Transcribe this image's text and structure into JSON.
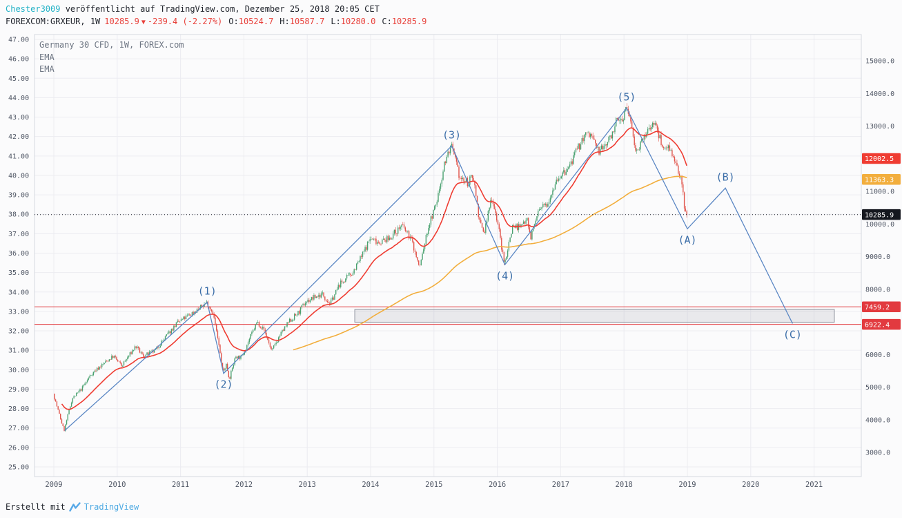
{
  "header": {
    "username": "Chester3009",
    "published_text": " veröffentlicht auf TradingView.com, Dezember 25, 2018 20:05 CET",
    "symbol": {
      "name": "FOREXCOM:GRXEUR, 1W",
      "price": "10285.9",
      "arrow": "▼",
      "change": "-239.4 (-2.27%)",
      "o_label": "O:",
      "o": "10524.7",
      "h_label": "H:",
      "h": "10587.7",
      "l_label": "L:",
      "l": "10280.0",
      "c_label": "C:",
      "c": "10285.9"
    }
  },
  "legend": {
    "title": "Germany 30 CFD, 1W, FOREX.com",
    "ema1": "EMA",
    "ema2": "EMA"
  },
  "footer": {
    "created_with": "Erstellt mit",
    "brand": "TradingView"
  },
  "colors": {
    "grid": "#ececf1",
    "border": "#d5d8df",
    "axis_text": "#4f5664",
    "candle_up": "#4aa170",
    "candle_down": "#e0534a",
    "ema_fast": "#ef3c32",
    "ema_slow": "#f2ae3d",
    "level": "#e23a3f",
    "current_badge": "#14171e",
    "wave_line": "#5b87c4",
    "wave_label": "#3a6da8",
    "zone_fill": "rgba(140,144,156,0.16)",
    "zone_border": "#8f939e",
    "dotted_line": "#20242c"
  },
  "chart_data": {
    "type": "candlestick",
    "title": "Germany 30 CFD, 1W, FOREX.com",
    "x_axis": {
      "years": [
        2009,
        2010,
        2011,
        2012,
        2013,
        2014,
        2015,
        2016,
        2017,
        2018,
        2019,
        2020,
        2021
      ]
    },
    "left_axis": {
      "ticks": [
        47,
        46,
        45,
        44,
        43,
        42,
        41,
        40,
        39,
        38,
        37,
        36,
        35,
        34,
        33,
        32,
        31,
        30,
        29,
        28,
        27,
        26,
        25
      ]
    },
    "right_axis": {
      "ticks": [
        15000,
        14000,
        13000,
        12000,
        11000,
        10000,
        9000,
        8000,
        7000,
        6000,
        5000,
        4000,
        3000
      ],
      "min": 2300,
      "max": 15650
    },
    "current_price": 10285.9,
    "levels": [
      7459.2,
      6922.4
    ],
    "zone": {
      "t_start": 2013.75,
      "t_end": 2021.32,
      "price_top": 7380,
      "price_bottom": 6990
    },
    "ema_fast": {
      "period": 30,
      "last": 12002.5
    },
    "ema_slow": {
      "period": 200,
      "last": 11363.3
    },
    "price_anchors": [
      [
        2009.0,
        4800
      ],
      [
        2009.06,
        4400
      ],
      [
        2009.17,
        3666
      ],
      [
        2009.3,
        4650
      ],
      [
        2009.45,
        4950
      ],
      [
        2009.6,
        5400
      ],
      [
        2009.78,
        5700
      ],
      [
        2009.95,
        5950
      ],
      [
        2010.08,
        5650
      ],
      [
        2010.3,
        6250
      ],
      [
        2010.42,
        5950
      ],
      [
        2010.6,
        6100
      ],
      [
        2010.8,
        6600
      ],
      [
        2010.95,
        6950
      ],
      [
        2011.1,
        7150
      ],
      [
        2011.3,
        7400
      ],
      [
        2011.42,
        7600
      ],
      [
        2011.52,
        7300
      ],
      [
        2011.6,
        6450
      ],
      [
        2011.68,
        5450
      ],
      [
        2011.73,
        5700
      ],
      [
        2011.78,
        5250
      ],
      [
        2011.88,
        5950
      ],
      [
        2011.97,
        5900
      ],
      [
        2012.08,
        6400
      ],
      [
        2012.22,
        7000
      ],
      [
        2012.33,
        6750
      ],
      [
        2012.45,
        6100
      ],
      [
        2012.58,
        6600
      ],
      [
        2012.72,
        7000
      ],
      [
        2012.88,
        7300
      ],
      [
        2012.98,
        7600
      ],
      [
        2013.12,
        7750
      ],
      [
        2013.25,
        7850
      ],
      [
        2013.37,
        7550
      ],
      [
        2013.52,
        8150
      ],
      [
        2013.72,
        8500
      ],
      [
        2013.88,
        9050
      ],
      [
        2014.0,
        9550
      ],
      [
        2014.15,
        9450
      ],
      [
        2014.3,
        9550
      ],
      [
        2014.5,
        9950
      ],
      [
        2014.65,
        9550
      ],
      [
        2014.78,
        8650
      ],
      [
        2014.92,
        9900
      ],
      [
        2015.05,
        10650
      ],
      [
        2015.18,
        11900
      ],
      [
        2015.28,
        12390
      ],
      [
        2015.42,
        11400
      ],
      [
        2015.55,
        11250
      ],
      [
        2015.63,
        11500
      ],
      [
        2015.73,
        10050
      ],
      [
        2015.8,
        9700
      ],
      [
        2015.92,
        10850
      ],
      [
        2016.02,
        10000
      ],
      [
        2016.12,
        8750
      ],
      [
        2016.25,
        9950
      ],
      [
        2016.38,
        9900
      ],
      [
        2016.48,
        10250
      ],
      [
        2016.53,
        9550
      ],
      [
        2016.65,
        10350
      ],
      [
        2016.8,
        10650
      ],
      [
        2016.95,
        11400
      ],
      [
        2017.1,
        11600
      ],
      [
        2017.22,
        12050
      ],
      [
        2017.38,
        12700
      ],
      [
        2017.48,
        12750
      ],
      [
        2017.62,
        12200
      ],
      [
        2017.78,
        12600
      ],
      [
        2017.88,
        13100
      ],
      [
        2017.98,
        13200
      ],
      [
        2018.04,
        13550
      ],
      [
        2018.12,
        13150
      ],
      [
        2018.18,
        12300
      ],
      [
        2018.28,
        12450
      ],
      [
        2018.4,
        12900
      ],
      [
        2018.48,
        13150
      ],
      [
        2018.57,
        12650
      ],
      [
        2018.65,
        12300
      ],
      [
        2018.72,
        12450
      ],
      [
        2018.8,
        11900
      ],
      [
        2018.87,
        11550
      ],
      [
        2018.92,
        11350
      ],
      [
        2018.96,
        10600
      ],
      [
        2018.99,
        10285.9
      ]
    ],
    "wave_path": [
      {
        "label": null,
        "t": 2009.17,
        "price": 3666,
        "pos": "below"
      },
      {
        "label": "(1)",
        "t": 2011.42,
        "price": 7600,
        "pos": "above"
      },
      {
        "label": "(2)",
        "t": 2011.68,
        "price": 5420,
        "pos": "below"
      },
      {
        "label": "(3)",
        "t": 2015.28,
        "price": 12390,
        "pos": "above"
      },
      {
        "label": "(4)",
        "t": 2016.12,
        "price": 8750,
        "pos": "below"
      },
      {
        "label": "(5)",
        "t": 2018.04,
        "price": 13550,
        "pos": "above"
      },
      {
        "label": "(A)",
        "t": 2019.0,
        "price": 9850,
        "pos": "below"
      },
      {
        "label": "(B)",
        "t": 2019.6,
        "price": 11100,
        "pos": "above"
      },
      {
        "label": "(C)",
        "t": 2020.66,
        "price": 6950,
        "pos": "below"
      }
    ]
  }
}
